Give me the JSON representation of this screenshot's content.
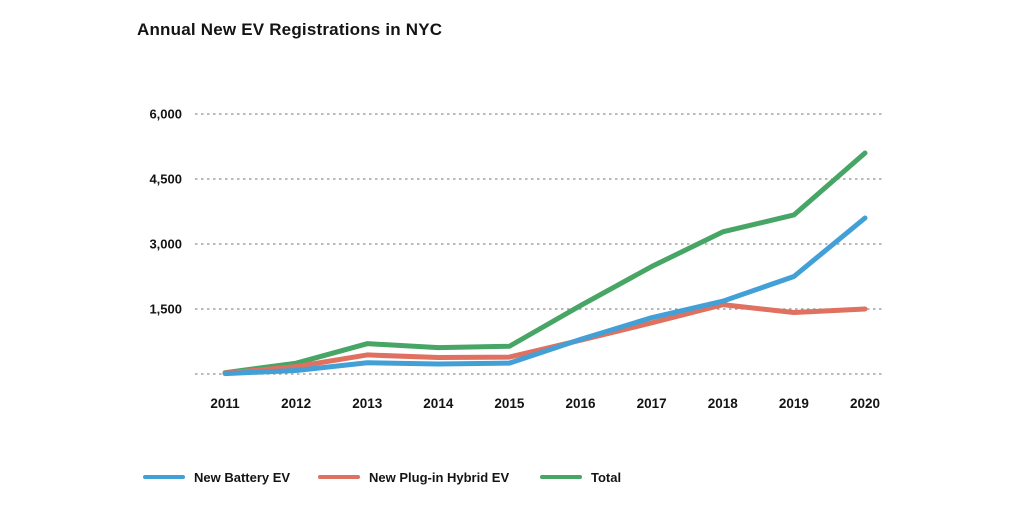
{
  "chart_data": {
    "type": "line",
    "title": "Annual New EV Registrations in NYC",
    "x": [
      "2011",
      "2012",
      "2013",
      "2014",
      "2015",
      "2016",
      "2017",
      "2018",
      "2019",
      "2020"
    ],
    "series": [
      {
        "name": "New Battery EV",
        "color": "#42a0d7",
        "values": [
          10,
          80,
          260,
          230,
          250,
          800,
          1300,
          1680,
          2250,
          3600
        ]
      },
      {
        "name": "New Plug-in Hybrid EV",
        "color": "#e0705f",
        "values": [
          20,
          170,
          440,
          380,
          390,
          780,
          1180,
          1600,
          1420,
          1500
        ]
      },
      {
        "name": "Total",
        "color": "#47a566",
        "values": [
          30,
          250,
          700,
          610,
          640,
          1580,
          2480,
          3280,
          3670,
          5100
        ]
      }
    ],
    "xlabel": "",
    "ylabel": "",
    "ylim": [
      0,
      6000
    ],
    "y_ticks": [
      {
        "value": 1500,
        "label": "1,500"
      },
      {
        "value": 3000,
        "label": "3,000"
      },
      {
        "value": 4500,
        "label": "4,500"
      },
      {
        "value": 6000,
        "label": "6,000"
      }
    ],
    "gridline_values": [
      0,
      1500,
      3000,
      4500,
      6000
    ],
    "grid": "horizontal-dashed",
    "legend_position": "bottom-left",
    "gridline_color": "#8f8f8f",
    "text_color": "#141414"
  }
}
